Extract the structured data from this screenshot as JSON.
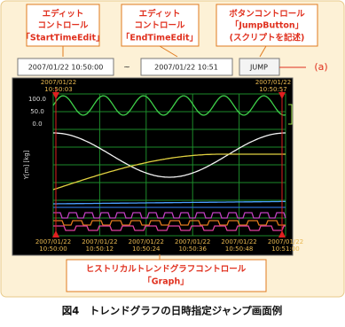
{
  "callouts": [
    {
      "lines": [
        "エディット",
        "コントロール",
        "「StartTimeEdit」"
      ]
    },
    {
      "lines": [
        "エディット",
        "コントロール",
        "「EndTimeEdit」"
      ]
    },
    {
      "lines": [
        "ボタンコントロール",
        "「JumpButton」",
        "(スクリプトを記述)"
      ]
    }
  ],
  "controls": {
    "start_time": "2007/01/22 10:50:00",
    "separator": "~",
    "end_time": "2007/01/22 10:51",
    "jump_button": "JUMP"
  },
  "annotation": "(a)",
  "graph": {
    "top_labels": [
      {
        "date": "2007/01/22",
        "time": "10:50:03"
      },
      {
        "date": "2007/01/22",
        "time": "10:50:57"
      }
    ],
    "y_axis_label": "Y[m] [kg]",
    "y_ticks": [
      "100.0",
      "50.0",
      "0.0"
    ],
    "x_labels": [
      {
        "date": "2007/01/22",
        "time": "10:50:00"
      },
      {
        "date": "2007/01/22",
        "time": "10:50:12"
      },
      {
        "date": "2007/01/22",
        "time": "10:50:24"
      },
      {
        "date": "2007/01/22",
        "time": "10:50:36"
      },
      {
        "date": "2007/01/22",
        "time": "10:50:48"
      },
      {
        "date": "2007/01/22",
        "time": "10:51:00"
      }
    ]
  },
  "graph_callout": {
    "lines": [
      "ヒストリカルトレンドグラフコントロール",
      "「Graph」"
    ]
  },
  "caption": "図4　トレンドグラフの日時指定ジャンプ画面例"
}
